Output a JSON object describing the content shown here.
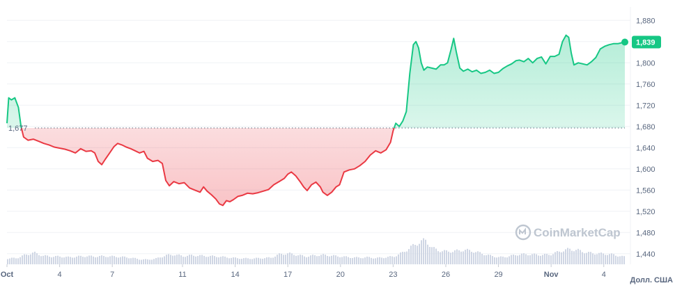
{
  "chart_data": {
    "type": "line",
    "ylim": [
      1420,
      1900
    ],
    "y_ticks": [
      1440,
      1480,
      1520,
      1560,
      1600,
      1640,
      1680,
      1720,
      1760,
      1800,
      1840,
      1880
    ],
    "y_tick_labels": [
      "1,440",
      "1,480",
      "1,520",
      "1,560",
      "1,600",
      "1,640",
      "1,680",
      "1,720",
      "1,760",
      "1,800",
      "1,840",
      "1,880"
    ],
    "x_ticks": [
      {
        "label": "Oct",
        "day": 1,
        "bold": true
      },
      {
        "label": "4",
        "day": 4,
        "bold": false
      },
      {
        "label": "7",
        "day": 7,
        "bold": false
      },
      {
        "label": "11",
        "day": 11,
        "bold": false
      },
      {
        "label": "14",
        "day": 14,
        "bold": false
      },
      {
        "label": "17",
        "day": 17,
        "bold": false
      },
      {
        "label": "20",
        "day": 20,
        "bold": false
      },
      {
        "label": "23",
        "day": 23,
        "bold": false
      },
      {
        "label": "26",
        "day": 26,
        "bold": false
      },
      {
        "label": "29",
        "day": 29,
        "bold": false
      },
      {
        "label": "Nov",
        "day": 32,
        "bold": true
      },
      {
        "label": "4",
        "day": 35,
        "bold": false
      }
    ],
    "x_range": [
      1,
      36.2
    ],
    "reference_value": 1677,
    "reference_label": "1,677",
    "last_value": 1839,
    "last_label": "1,839",
    "unit_label": "Долл. США",
    "watermark": "CoinMarketCap",
    "colors": {
      "up": "#16c784",
      "down": "#ea3943",
      "grid": "#eff2f5",
      "volume": "#cfd6e4"
    },
    "series": [
      {
        "values": [
          [
            1.0,
            1686
          ],
          [
            1.1,
            1734
          ],
          [
            1.25,
            1730
          ],
          [
            1.45,
            1734
          ],
          [
            1.65,
            1716
          ],
          [
            1.8,
            1680
          ],
          [
            1.95,
            1660
          ],
          [
            2.2,
            1654
          ],
          [
            2.5,
            1656
          ],
          [
            2.8,
            1652
          ],
          [
            3.1,
            1648
          ],
          [
            3.4,
            1645
          ],
          [
            3.7,
            1641
          ],
          [
            4.0,
            1639
          ],
          [
            4.3,
            1637
          ],
          [
            4.6,
            1634
          ],
          [
            4.9,
            1630
          ],
          [
            5.2,
            1638
          ],
          [
            5.5,
            1633
          ],
          [
            5.8,
            1634
          ],
          [
            6.0,
            1630
          ],
          [
            6.2,
            1614
          ],
          [
            6.4,
            1608
          ],
          [
            6.6,
            1618
          ],
          [
            6.85,
            1630
          ],
          [
            7.1,
            1642
          ],
          [
            7.3,
            1648
          ],
          [
            7.55,
            1645
          ],
          [
            7.8,
            1641
          ],
          [
            8.05,
            1638
          ],
          [
            8.3,
            1634
          ],
          [
            8.55,
            1630
          ],
          [
            8.8,
            1633
          ],
          [
            9.0,
            1620
          ],
          [
            9.3,
            1614
          ],
          [
            9.6,
            1616
          ],
          [
            9.85,
            1610
          ],
          [
            10.05,
            1578
          ],
          [
            10.25,
            1568
          ],
          [
            10.5,
            1576
          ],
          [
            10.8,
            1572
          ],
          [
            11.1,
            1574
          ],
          [
            11.4,
            1564
          ],
          [
            11.7,
            1560
          ],
          [
            12.0,
            1556
          ],
          [
            12.2,
            1566
          ],
          [
            12.4,
            1558
          ],
          [
            12.65,
            1551
          ],
          [
            12.9,
            1543
          ],
          [
            13.1,
            1534
          ],
          [
            13.3,
            1531
          ],
          [
            13.5,
            1540
          ],
          [
            13.7,
            1538
          ],
          [
            13.9,
            1542
          ],
          [
            14.15,
            1548
          ],
          [
            14.4,
            1550
          ],
          [
            14.7,
            1554
          ],
          [
            15.0,
            1553
          ],
          [
            15.3,
            1555
          ],
          [
            15.6,
            1558
          ],
          [
            15.9,
            1561
          ],
          [
            16.2,
            1570
          ],
          [
            16.5,
            1576
          ],
          [
            16.8,
            1582
          ],
          [
            17.0,
            1590
          ],
          [
            17.2,
            1594
          ],
          [
            17.45,
            1587
          ],
          [
            17.7,
            1576
          ],
          [
            17.9,
            1566
          ],
          [
            18.1,
            1559
          ],
          [
            18.35,
            1570
          ],
          [
            18.6,
            1575
          ],
          [
            18.85,
            1566
          ],
          [
            19.0,
            1556
          ],
          [
            19.25,
            1550
          ],
          [
            19.5,
            1556
          ],
          [
            19.75,
            1566
          ],
          [
            19.95,
            1570
          ],
          [
            20.2,
            1594
          ],
          [
            20.5,
            1598
          ],
          [
            20.8,
            1600
          ],
          [
            21.1,
            1606
          ],
          [
            21.4,
            1614
          ],
          [
            21.7,
            1626
          ],
          [
            22.0,
            1634
          ],
          [
            22.3,
            1630
          ],
          [
            22.6,
            1636
          ],
          [
            22.85,
            1650
          ],
          [
            23.0,
            1672
          ],
          [
            23.15,
            1686
          ],
          [
            23.35,
            1680
          ],
          [
            23.55,
            1690
          ],
          [
            23.75,
            1708
          ],
          [
            23.95,
            1780
          ],
          [
            24.15,
            1834
          ],
          [
            24.3,
            1840
          ],
          [
            24.45,
            1828
          ],
          [
            24.6,
            1800
          ],
          [
            24.75,
            1786
          ],
          [
            24.95,
            1792
          ],
          [
            25.2,
            1790
          ],
          [
            25.45,
            1788
          ],
          [
            25.7,
            1796
          ],
          [
            25.9,
            1796
          ],
          [
            26.1,
            1800
          ],
          [
            26.3,
            1825
          ],
          [
            26.45,
            1846
          ],
          [
            26.6,
            1820
          ],
          [
            26.8,
            1790
          ],
          [
            27.0,
            1784
          ],
          [
            27.25,
            1788
          ],
          [
            27.5,
            1783
          ],
          [
            27.75,
            1786
          ],
          [
            28.0,
            1780
          ],
          [
            28.25,
            1782
          ],
          [
            28.5,
            1786
          ],
          [
            28.75,
            1780
          ],
          [
            29.0,
            1782
          ],
          [
            29.25,
            1789
          ],
          [
            29.5,
            1794
          ],
          [
            29.75,
            1798
          ],
          [
            30.0,
            1804
          ],
          [
            30.2,
            1805
          ],
          [
            30.45,
            1802
          ],
          [
            30.7,
            1808
          ],
          [
            30.95,
            1800
          ],
          [
            31.2,
            1808
          ],
          [
            31.45,
            1811
          ],
          [
            31.7,
            1798
          ],
          [
            31.95,
            1812
          ],
          [
            32.2,
            1812
          ],
          [
            32.45,
            1816
          ],
          [
            32.65,
            1840
          ],
          [
            32.85,
            1852
          ],
          [
            33.0,
            1848
          ],
          [
            33.15,
            1818
          ],
          [
            33.3,
            1796
          ],
          [
            33.55,
            1800
          ],
          [
            33.8,
            1798
          ],
          [
            34.05,
            1796
          ],
          [
            34.3,
            1802
          ],
          [
            34.55,
            1810
          ],
          [
            34.8,
            1826
          ],
          [
            35.05,
            1831
          ],
          [
            35.3,
            1834
          ],
          [
            35.55,
            1836
          ],
          [
            35.8,
            1836
          ],
          [
            36.05,
            1838
          ],
          [
            36.2,
            1839
          ]
        ]
      },
      {
        "volume": [
          [
            1.0,
            0.15
          ],
          [
            1.5,
            0.16
          ],
          [
            2.0,
            0.24
          ],
          [
            2.5,
            0.3
          ],
          [
            3.0,
            0.22
          ],
          [
            3.5,
            0.2
          ],
          [
            4.0,
            0.2
          ],
          [
            4.5,
            0.18
          ],
          [
            5.0,
            0.2
          ],
          [
            5.5,
            0.21
          ],
          [
            6.0,
            0.2
          ],
          [
            6.5,
            0.21
          ],
          [
            7.0,
            0.2
          ],
          [
            7.5,
            0.19
          ],
          [
            8.0,
            0.17
          ],
          [
            8.5,
            0.13
          ],
          [
            9.0,
            0.12
          ],
          [
            9.5,
            0.15
          ],
          [
            10.0,
            0.23
          ],
          [
            10.5,
            0.25
          ],
          [
            11.0,
            0.21
          ],
          [
            11.5,
            0.23
          ],
          [
            12.0,
            0.22
          ],
          [
            12.5,
            0.21
          ],
          [
            13.0,
            0.2
          ],
          [
            13.5,
            0.18
          ],
          [
            14.0,
            0.16
          ],
          [
            14.5,
            0.15
          ],
          [
            15.0,
            0.15
          ],
          [
            15.5,
            0.16
          ],
          [
            16.0,
            0.17
          ],
          [
            16.5,
            0.26
          ],
          [
            17.0,
            0.28
          ],
          [
            17.5,
            0.24
          ],
          [
            18.0,
            0.2
          ],
          [
            18.5,
            0.23
          ],
          [
            19.0,
            0.24
          ],
          [
            19.5,
            0.22
          ],
          [
            20.0,
            0.2
          ],
          [
            20.5,
            0.18
          ],
          [
            21.0,
            0.17
          ],
          [
            21.5,
            0.18
          ],
          [
            22.0,
            0.16
          ],
          [
            22.5,
            0.18
          ],
          [
            23.0,
            0.2
          ],
          [
            23.5,
            0.3
          ],
          [
            24.0,
            0.45
          ],
          [
            24.5,
            0.58
          ],
          [
            24.8,
            0.62
          ],
          [
            25.2,
            0.42
          ],
          [
            25.5,
            0.36
          ],
          [
            26.0,
            0.33
          ],
          [
            26.5,
            0.34
          ],
          [
            27.0,
            0.37
          ],
          [
            27.5,
            0.34
          ],
          [
            28.0,
            0.28
          ],
          [
            28.5,
            0.22
          ],
          [
            29.0,
            0.18
          ],
          [
            29.5,
            0.2
          ],
          [
            30.0,
            0.25
          ],
          [
            30.5,
            0.26
          ],
          [
            31.0,
            0.25
          ],
          [
            31.5,
            0.24
          ],
          [
            32.0,
            0.26
          ],
          [
            32.5,
            0.34
          ],
          [
            33.0,
            0.39
          ],
          [
            33.5,
            0.36
          ],
          [
            34.0,
            0.3
          ],
          [
            34.5,
            0.28
          ],
          [
            35.0,
            0.27
          ],
          [
            35.5,
            0.25
          ],
          [
            36.0,
            0.2
          ],
          [
            36.2,
            0.19
          ]
        ]
      }
    ]
  }
}
